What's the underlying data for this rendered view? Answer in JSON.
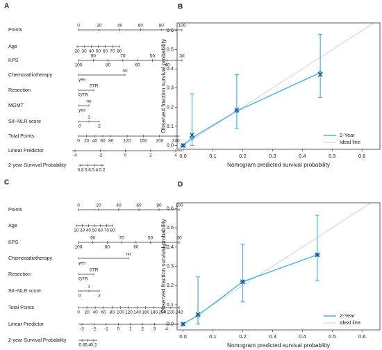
{
  "panel_labels": [
    "A",
    "B",
    "C",
    "D"
  ],
  "nomograms": [
    {
      "rows": [
        {
          "label": "Points",
          "ticks": [
            0,
            20,
            40,
            60,
            80,
            100
          ],
          "lim": [
            0,
            100
          ]
        },
        {
          "label": "Age",
          "ticks": [
            20,
            30,
            40,
            50,
            60,
            70,
            80
          ],
          "lim": [
            20,
            80
          ]
        },
        {
          "label": "KPS",
          "ticks": [
            100,
            90,
            80,
            70,
            60,
            50,
            40,
            30
          ],
          "lim": [
            100,
            30
          ]
        },
        {
          "label": "Chemoradiotherapy",
          "levels": [
            "yes",
            "no"
          ]
        },
        {
          "label": "Resection",
          "levels": [
            "GTR",
            "STR"
          ]
        },
        {
          "label": "MGMT",
          "levels": [
            "yes",
            "no"
          ]
        },
        {
          "label": "SII−NLR score",
          "levels": [
            "0",
            "1",
            "2"
          ]
        },
        {
          "label": "Total Points",
          "ticks": [
            0,
            20,
            40,
            60,
            80,
            120,
            160,
            200,
            240
          ],
          "lim": [
            0,
            250
          ]
        },
        {
          "label": "Linear Predictor",
          "ticks": [
            -4,
            -2,
            0,
            2,
            4
          ],
          "lim": [
            -4,
            4
          ]
        },
        {
          "label": "2-year Survival Probability",
          "ticks": [
            0.8,
            0.6,
            0.4,
            0.2
          ],
          "lim": [
            0.86,
            0.14
          ]
        }
      ]
    },
    {
      "rows": [
        {
          "label": "Points",
          "ticks": [
            0,
            20,
            40,
            60,
            80,
            100
          ],
          "lim": [
            0,
            100
          ]
        },
        {
          "label": "Age",
          "ticks": [
            20,
            30,
            40,
            50,
            60,
            70,
            80
          ],
          "lim": [
            20,
            80
          ]
        },
        {
          "label": "KPS",
          "ticks": [
            100,
            90,
            80,
            70,
            60,
            50,
            40,
            30
          ],
          "lim": [
            100,
            30
          ]
        },
        {
          "label": "Chemoradiotherapy",
          "levels": [
            "yes",
            "no"
          ]
        },
        {
          "label": "Resection",
          "levels": [
            "GTR",
            "STR"
          ]
        },
        {
          "label": "SII−NLR score",
          "levels": [
            "0",
            "1",
            "2"
          ]
        },
        {
          "label": "Total Points",
          "ticks": [
            0,
            20,
            40,
            60,
            80,
            100,
            120,
            140,
            160,
            180,
            200,
            220,
            240
          ],
          "lim": [
            0,
            240
          ]
        },
        {
          "label": "Linear Predictor",
          "ticks": [
            -3,
            -2,
            -1,
            0,
            1,
            2,
            3,
            4
          ],
          "lim": [
            -3,
            4
          ]
        },
        {
          "label": "2-year Survival Probability",
          "ticks": [
            0.6,
            0.4,
            0.2
          ],
          "lim": [
            0.72,
            0.08
          ]
        }
      ]
    }
  ],
  "chart_data": [
    {
      "type": "line",
      "x_label": "Nomogram predicted survival probability",
      "y_label": "Observed fraction survival probability",
      "xlim": [
        -0.02,
        0.66
      ],
      "ylim": [
        -0.02,
        0.64
      ],
      "xticks": [
        {
          "value": 0,
          "label": "0.0"
        },
        0.1,
        0.2,
        0.3,
        0.4,
        0.5,
        0.6
      ],
      "yticks": [
        {
          "value": 0,
          "label": "0.0"
        },
        0.1,
        0.2,
        0.3,
        0.4,
        0.5,
        0.6
      ],
      "legend": "lower right",
      "series": [
        {
          "name": "2-Year",
          "color": "#45b5de",
          "marker_color": "#2b3a96",
          "x": [
            0.0,
            0.03,
            0.18,
            0.46
          ],
          "values": [
            0.0,
            0.04,
            0.18,
            0.38
          ],
          "marker_values": [
            0.0,
            0.055,
            0.185,
            0.37
          ],
          "error_low": [
            null,
            0.0,
            0.09,
            0.25
          ],
          "error_high": [
            null,
            0.27,
            0.37,
            0.58
          ]
        }
      ],
      "reference_line": {
        "name": "Ideal line",
        "color": "#cfcfcf"
      }
    },
    {
      "type": "line",
      "x_label": "Nomogram predicted survival probability",
      "y_label": "Observed fraction survival probability",
      "xlim": [
        -0.02,
        0.66
      ],
      "ylim": [
        -0.03,
        0.63
      ],
      "xticks": [
        {
          "value": 0,
          "label": "0.0"
        },
        0.1,
        0.2,
        0.3,
        0.4,
        0.5,
        0.6
      ],
      "yticks": [
        {
          "value": 0,
          "label": "0.0"
        },
        0.1,
        0.2,
        0.3,
        0.4,
        0.5,
        0.6
      ],
      "legend": "lower right",
      "series": [
        {
          "name": "2-Year",
          "color": "#45b5de",
          "marker_color": "#2b3a96",
          "x": [
            0.0,
            0.05,
            0.2,
            0.45
          ],
          "values": [
            0.0,
            0.045,
            0.22,
            0.36
          ],
          "marker_values": [
            0.0,
            0.05,
            0.22,
            0.36
          ],
          "error_low": [
            null,
            0.0,
            0.115,
            0.225
          ],
          "error_high": [
            null,
            0.245,
            0.415,
            0.565
          ]
        }
      ],
      "reference_line": {
        "name": "Ideal line",
        "color": "#cfcfcf"
      }
    }
  ]
}
